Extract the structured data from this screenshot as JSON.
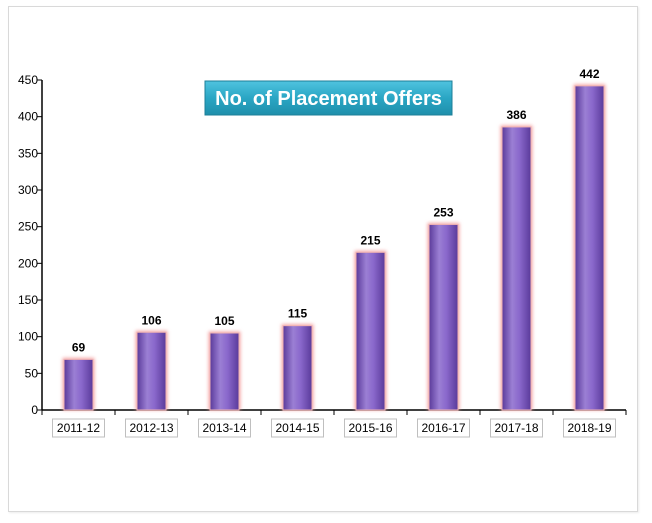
{
  "chart_data": {
    "type": "bar",
    "title": "No. of Placement Offers",
    "categories": [
      "2011-12",
      "2012-13",
      "2013-14",
      "2014-15",
      "2015-16",
      "2016-17",
      "2017-18",
      "2018-19"
    ],
    "values": [
      69,
      106,
      105,
      115,
      215,
      253,
      386,
      442
    ],
    "data_labels": [
      "69",
      "106",
      "105",
      "115",
      "215",
      "253",
      "386",
      "442"
    ],
    "ylim": [
      0,
      450
    ],
    "yticks": [
      "0",
      "50",
      "100",
      "150",
      "200",
      "250",
      "300",
      "350",
      "400",
      "450"
    ],
    "grid": false,
    "legend": "none",
    "colors": {
      "bar_top": "#9b7fd4",
      "bar_mid": "#7b57bd",
      "bar_bottom": "#5a3a9a",
      "bar_glow": "#f4a6a6",
      "title_bg": "#2aa6c4",
      "title_text": "#ffffff"
    }
  }
}
